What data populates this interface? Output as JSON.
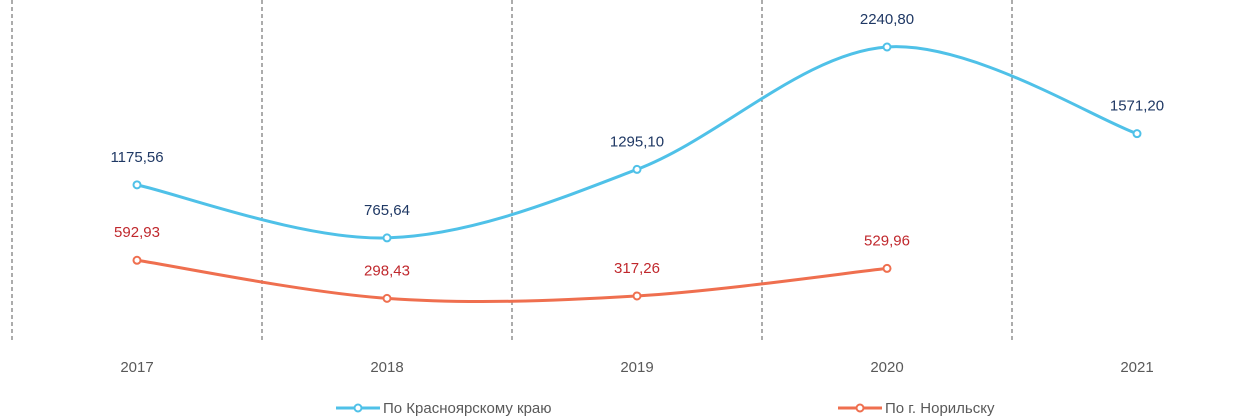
{
  "chart_data": {
    "type": "line",
    "categories": [
      "2017",
      "2018",
      "2019",
      "2020",
      "2021"
    ],
    "series": [
      {
        "name": "По Красноярскому краю",
        "color": "#4fc1e8",
        "label_color": "#1f3864",
        "values": [
          1175.56,
          765.64,
          1295.1,
          2240.8,
          1571.2
        ],
        "value_labels": [
          "1175,56",
          "765,64",
          "1295,10",
          "2240,80",
          "1571,20"
        ]
      },
      {
        "name": "По г. Норильску",
        "color": "#ef6f4f",
        "label_color": "#c0282d",
        "values": [
          592.93,
          298.43,
          317.26,
          529.96,
          null
        ],
        "value_labels": [
          "592,93",
          "298,43",
          "317,26",
          "529,96",
          null
        ]
      }
    ],
    "grid": true,
    "smooth": true,
    "legend": "bottom"
  }
}
